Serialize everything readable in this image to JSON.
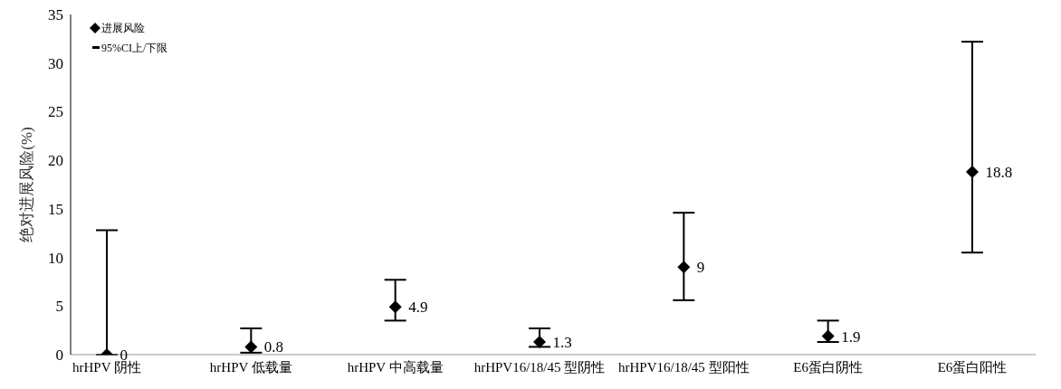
{
  "chart_data": {
    "type": "scatter",
    "ylabel": "绝对进展风险(%)",
    "categories": [
      "hrHPV 阴性",
      "hrHPV 低载量",
      "hrHPV 中高载量",
      "hrHPV16/18/45 型阴性",
      "hrHPV16/18/45 型阳性",
      "E6蛋白阴性",
      "E6蛋白阳性"
    ],
    "series": [
      {
        "name": "进展风险",
        "color": "#000000",
        "values": [
          0,
          0.8,
          4.9,
          1.3,
          9,
          1.9,
          18.8
        ],
        "errors": [
          [
            0,
            12.8
          ],
          [
            0.2,
            2.7
          ],
          [
            3.5,
            7.7
          ],
          [
            0.8,
            2.7
          ],
          [
            5.6,
            14.6
          ],
          [
            1.3,
            3.5
          ],
          [
            10.5,
            32.2
          ]
        ]
      }
    ],
    "annotations": [
      "95%CI上/下限"
    ],
    "ylim": [
      0,
      35
    ],
    "yticks": [
      0,
      5,
      10,
      15,
      20,
      25,
      30,
      35
    ],
    "marker": "diamond",
    "data_labels": true,
    "legend": "top left",
    "grid": false
  }
}
